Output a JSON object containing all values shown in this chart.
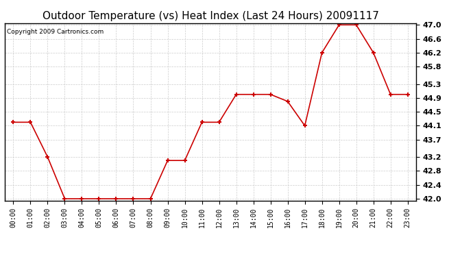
{
  "title": "Outdoor Temperature (vs) Heat Index (Last 24 Hours) 20091117",
  "copyright": "Copyright 2009 Cartronics.com",
  "x_labels": [
    "00:00",
    "01:00",
    "02:00",
    "03:00",
    "04:00",
    "05:00",
    "06:00",
    "07:00",
    "08:00",
    "09:00",
    "10:00",
    "11:00",
    "12:00",
    "13:00",
    "14:00",
    "15:00",
    "16:00",
    "17:00",
    "18:00",
    "19:00",
    "20:00",
    "21:00",
    "22:00",
    "23:00"
  ],
  "y_values": [
    44.2,
    44.2,
    43.2,
    42.0,
    42.0,
    42.0,
    42.0,
    42.0,
    42.0,
    43.1,
    43.1,
    44.2,
    44.2,
    45.0,
    45.0,
    45.0,
    44.8,
    44.1,
    46.2,
    47.0,
    47.0,
    46.2,
    45.0,
    45.0
  ],
  "line_color": "#cc0000",
  "marker_color": "#cc0000",
  "marker_style": "+",
  "background_color": "#ffffff",
  "plot_bg_color": "#ffffff",
  "grid_color": "#cccccc",
  "y_min": 42.0,
  "y_max": 47.0,
  "y_ticks": [
    42.0,
    42.4,
    42.8,
    43.2,
    43.7,
    44.1,
    44.5,
    44.9,
    45.3,
    45.8,
    46.2,
    46.6,
    47.0
  ],
  "title_fontsize": 11,
  "copyright_fontsize": 6.5,
  "tick_fontsize": 7,
  "ytick_fontsize": 8
}
